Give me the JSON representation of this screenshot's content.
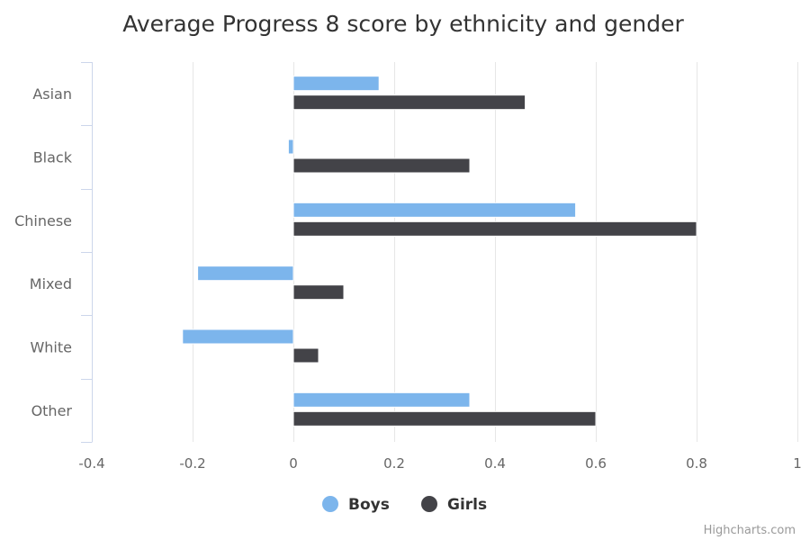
{
  "chart_data": {
    "type": "bar",
    "orientation": "horizontal",
    "title": "Average Progress 8 score by ethnicity and gender",
    "categories": [
      "Asian",
      "Black",
      "Chinese",
      "Mixed",
      "White",
      "Other"
    ],
    "series": [
      {
        "name": "Boys",
        "color": "#7cb5ec",
        "values": [
          0.17,
          -0.01,
          0.56,
          -0.19,
          -0.22,
          0.35
        ]
      },
      {
        "name": "Girls",
        "color": "#434348",
        "values": [
          0.46,
          0.35,
          0.8,
          0.1,
          0.05,
          0.6
        ]
      }
    ],
    "xlim": [
      -0.4,
      1.0
    ],
    "ticks": [
      "-0.4",
      "-0.2",
      "0",
      "0.2",
      "0.4",
      "0.6",
      "0.8",
      "1"
    ],
    "tick_values": [
      -0.4,
      -0.2,
      0,
      0.2,
      0.4,
      0.6,
      0.8,
      1.0
    ],
    "grid": true,
    "legend_position": "bottom-center"
  },
  "credits": "Highcharts.com"
}
